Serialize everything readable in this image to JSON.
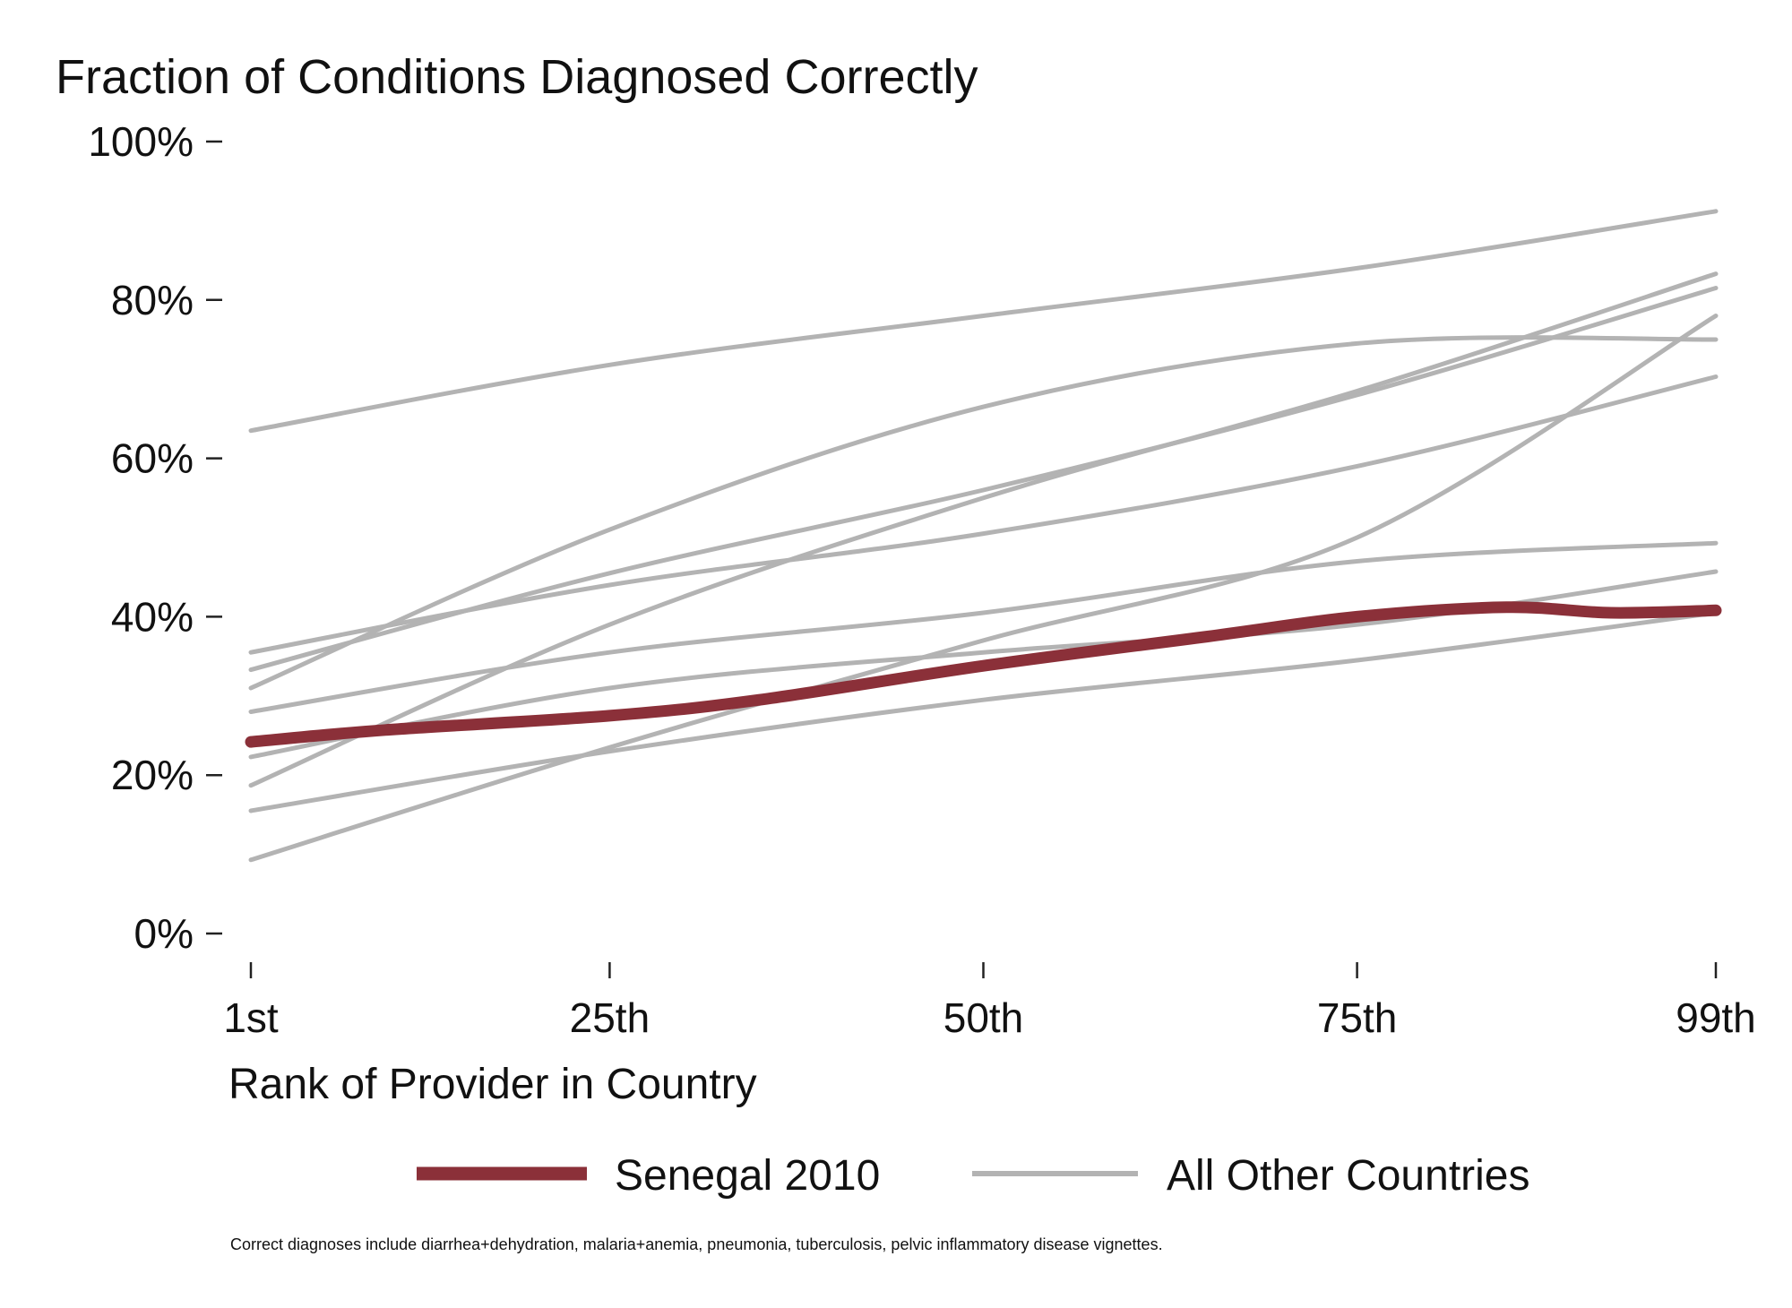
{
  "chart_data": {
    "type": "line",
    "title": "Fraction of Conditions Diagnosed Correctly",
    "xlabel": "Rank of Provider in Country",
    "ylabel": "",
    "x_ticks": [
      {
        "value": 1,
        "label": "1st"
      },
      {
        "value": 25,
        "label": "25th"
      },
      {
        "value": 50,
        "label": "50th"
      },
      {
        "value": 75,
        "label": "75th"
      },
      {
        "value": 99,
        "label": "99th"
      }
    ],
    "y_ticks": [
      {
        "value": 0,
        "label": "0%"
      },
      {
        "value": 20,
        "label": "20%"
      },
      {
        "value": 40,
        "label": "40%"
      },
      {
        "value": 60,
        "label": "60%"
      },
      {
        "value": 80,
        "label": "80%"
      },
      {
        "value": 100,
        "label": "100%"
      }
    ],
    "xlim": [
      1,
      99
    ],
    "ylim": [
      0,
      100
    ],
    "grid": false,
    "legend_position": "bottom",
    "legend": [
      {
        "label": "Senegal 2010",
        "color": "#8b3039"
      },
      {
        "label": "All Other Countries",
        "color": "#b3b3b3"
      }
    ],
    "note": "Correct diagnoses include diarrhea+dehydration, malaria+anemia, pneumonia, tuberculosis, pelvic inflammatory disease vignettes.",
    "highlight_series": {
      "color": "#8b3039",
      "x": [
        1,
        10,
        25,
        35,
        50,
        65,
        75,
        85,
        92,
        99
      ],
      "values": [
        24.2,
        25.7,
        27.5,
        29.5,
        33.8,
        37.5,
        40.0,
        41.2,
        40.5,
        40.8
      ]
    },
    "background_series": {
      "color": "#b3b3b3",
      "lines": [
        {
          "x": [
            1,
            25,
            50,
            75,
            99
          ],
          "values": [
            63.5,
            71.8,
            78.0,
            84.0,
            91.2
          ]
        },
        {
          "x": [
            1,
            25,
            50,
            75,
            99
          ],
          "values": [
            33.3,
            45.5,
            56.0,
            68.0,
            81.5
          ]
        },
        {
          "x": [
            1,
            25,
            50,
            75,
            99
          ],
          "values": [
            31.0,
            51.0,
            66.5,
            74.5,
            75.0
          ]
        },
        {
          "x": [
            1,
            25,
            50,
            75,
            99
          ],
          "values": [
            18.7,
            39.0,
            55.0,
            68.5,
            83.3
          ]
        },
        {
          "x": [
            1,
            25,
            50,
            75,
            99
          ],
          "values": [
            35.5,
            44.0,
            50.5,
            59.0,
            70.3
          ]
        },
        {
          "x": [
            1,
            25,
            50,
            75,
            99
          ],
          "values": [
            28.0,
            35.5,
            40.5,
            47.0,
            49.3
          ]
        },
        {
          "x": [
            1,
            25,
            50,
            75,
            99
          ],
          "values": [
            22.3,
            31.0,
            35.5,
            39.0,
            45.7
          ]
        },
        {
          "x": [
            1,
            25,
            50,
            75,
            99
          ],
          "values": [
            9.3,
            23.5,
            37.0,
            50.0,
            78.0
          ]
        },
        {
          "x": [
            1,
            25,
            50,
            75,
            99
          ],
          "values": [
            15.5,
            23.0,
            29.5,
            34.5,
            40.5
          ]
        }
      ]
    }
  }
}
